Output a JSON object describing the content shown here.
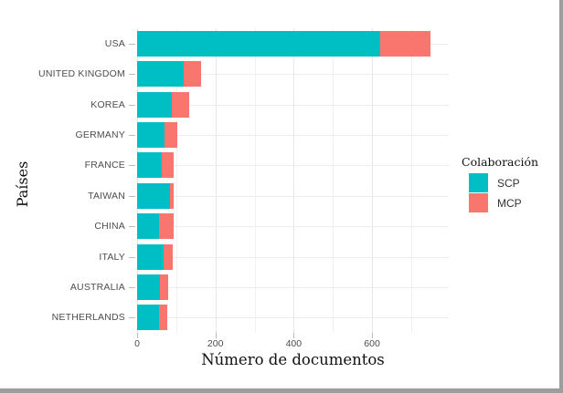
{
  "window": {
    "edge_color": "#9d9d9d",
    "background": "#ffffff"
  },
  "chart_data": {
    "type": "bar",
    "orientation": "horizontal",
    "stacked": true,
    "title": "",
    "xlabel": "Número de documentos",
    "ylabel": "Países",
    "categories": [
      "USA",
      "UNITED KINGDOM",
      "KOREA",
      "GERMANY",
      "FRANCE",
      "TAIWAN",
      "CHINA",
      "ITALY",
      "AUSTRALIA",
      "NETHERLANDS"
    ],
    "series": [
      {
        "name": "SCP",
        "color": "#00BFC4",
        "values": [
          620,
          120,
          88,
          70,
          63,
          84,
          55,
          68,
          59,
          56
        ]
      },
      {
        "name": "MCP",
        "color": "#F8766D",
        "values": [
          130,
          43,
          46,
          33,
          30,
          9,
          38,
          24,
          21,
          20
        ]
      }
    ],
    "totals": [
      750,
      163,
      134,
      103,
      93,
      93,
      93,
      92,
      80,
      76
    ],
    "x_ticks": [
      0,
      200,
      400,
      600
    ],
    "x_tick_labels": [
      "0",
      "200",
      "400",
      "600"
    ],
    "x_minor_ticks": [
      100,
      300,
      500,
      700
    ],
    "xlim": [
      0,
      796
    ],
    "grid": true,
    "legend_position": "right"
  },
  "legend": {
    "title": "Colaboración",
    "items": [
      {
        "label": "SCP",
        "color": "#00BFC4"
      },
      {
        "label": "MCP",
        "color": "#F8766D"
      }
    ]
  },
  "colors": {
    "scp": "#00BFC4",
    "mcp": "#F8766D",
    "grid_major": "#e6e6e6",
    "grid_minor": "#f1f1f1",
    "axis_text": "#4d4d4d",
    "tick_mark": "#bcbcbc",
    "title_text": "#111111"
  }
}
